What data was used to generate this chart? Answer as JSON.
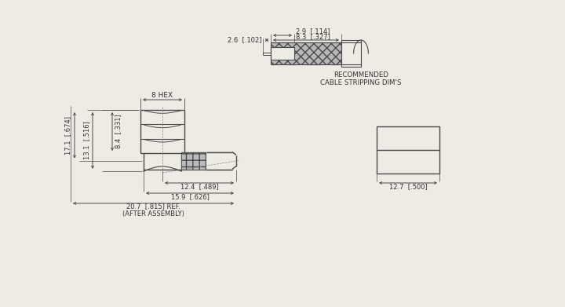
{
  "bg_color": "#eeebe4",
  "line_color": "#4a4a4a",
  "text_color": "#333333",
  "annotations": {
    "hex_label": "8 HEX",
    "rec_line1": "RECOMMENDED",
    "rec_line2": "CABLE STRIPPING DIM'S",
    "dim_8_3": "8.3  [.327]",
    "dim_2_9": "2.9  [.114]",
    "dim_2_6": "2.6  [.102]",
    "dim_8_4": "8.4  [.331]",
    "dim_13_1": "13.1  [.516]",
    "dim_17_1": "17.1  [.674]",
    "dim_12_4": "12.4  [.489]",
    "dim_15_9": "15.9  [.626]",
    "dim_20_7": "20.7  [.815] REF.",
    "dim_after": "(AFTER ASSEMBLY)",
    "dim_12_7": "12.7  [.500]"
  }
}
